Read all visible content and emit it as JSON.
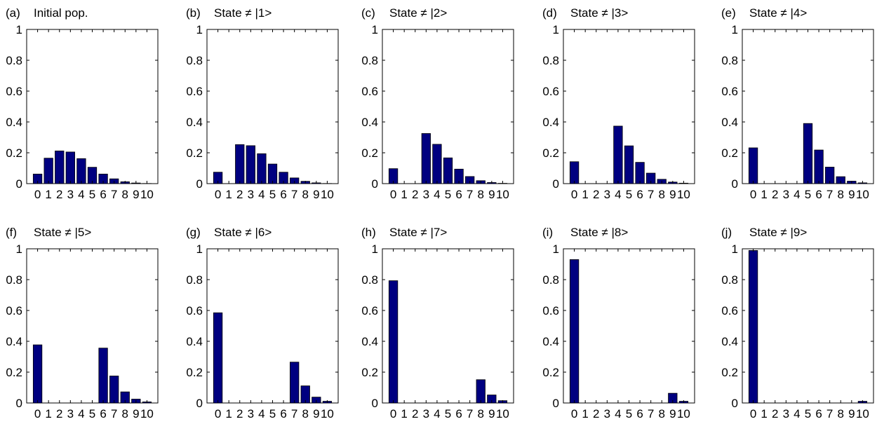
{
  "chart_data": [
    {
      "panel_label": "(a)",
      "title": "Initial pop.",
      "type": "bar",
      "categories": [
        "0",
        "1",
        "2",
        "3",
        "4",
        "5",
        "6",
        "7",
        "8",
        "9",
        "10"
      ],
      "values": [
        0.062,
        0.165,
        0.212,
        0.205,
        0.162,
        0.106,
        0.062,
        0.031,
        0.012,
        0.004,
        0.001
      ],
      "ylim": [
        0,
        1
      ],
      "yticks": [
        "0",
        "0.2",
        "0.4",
        "0.6",
        "0.8",
        "1"
      ],
      "xlabel": "",
      "ylabel": ""
    },
    {
      "panel_label": "(b)",
      "title": "State ≠ |1>",
      "type": "bar",
      "categories": [
        "0",
        "1",
        "2",
        "3",
        "4",
        "5",
        "6",
        "7",
        "8",
        "9",
        "10"
      ],
      "values": [
        0.074,
        0,
        0.253,
        0.246,
        0.194,
        0.127,
        0.074,
        0.037,
        0.015,
        0.005,
        0.001
      ],
      "ylim": [
        0,
        1
      ],
      "yticks": [
        "0",
        "0.2",
        "0.4",
        "0.6",
        "0.8",
        "1"
      ],
      "xlabel": "",
      "ylabel": ""
    },
    {
      "panel_label": "(c)",
      "title": "State ≠ |2>",
      "type": "bar",
      "categories": [
        "0",
        "1",
        "2",
        "3",
        "4",
        "5",
        "6",
        "7",
        "8",
        "9",
        "10"
      ],
      "values": [
        0.097,
        0,
        0,
        0.325,
        0.255,
        0.167,
        0.094,
        0.046,
        0.019,
        0.007,
        0.002
      ],
      "ylim": [
        0,
        1
      ],
      "yticks": [
        "0",
        "0.2",
        "0.4",
        "0.6",
        "0.8",
        "1"
      ],
      "xlabel": "",
      "ylabel": ""
    },
    {
      "panel_label": "(d)",
      "title": "State ≠ |3>",
      "type": "bar",
      "categories": [
        "0",
        "1",
        "2",
        "3",
        "4",
        "5",
        "6",
        "7",
        "8",
        "9",
        "10"
      ],
      "values": [
        0.142,
        0,
        0,
        0,
        0.373,
        0.245,
        0.138,
        0.068,
        0.028,
        0.01,
        0.003
      ],
      "ylim": [
        0,
        1
      ],
      "yticks": [
        "0",
        "0.2",
        "0.4",
        "0.6",
        "0.8",
        "1"
      ],
      "xlabel": "",
      "ylabel": ""
    },
    {
      "panel_label": "(e)",
      "title": "State ≠ |4>",
      "type": "bar",
      "categories": [
        "0",
        "1",
        "2",
        "3",
        "4",
        "5",
        "6",
        "7",
        "8",
        "9",
        "10"
      ],
      "values": [
        0.232,
        0,
        0,
        0,
        0,
        0.39,
        0.218,
        0.107,
        0.045,
        0.016,
        0.005
      ],
      "ylim": [
        0,
        1
      ],
      "yticks": [
        "0",
        "0.2",
        "0.4",
        "0.6",
        "0.8",
        "1"
      ],
      "xlabel": "",
      "ylabel": ""
    },
    {
      "panel_label": "(f)",
      "title": "State ≠ |5>",
      "type": "bar",
      "categories": [
        "0",
        "1",
        "2",
        "3",
        "4",
        "5",
        "6",
        "7",
        "8",
        "9",
        "10"
      ],
      "values": [
        0.377,
        0,
        0,
        0,
        0,
        0,
        0.356,
        0.175,
        0.072,
        0.025,
        0.007
      ],
      "ylim": [
        0,
        1
      ],
      "yticks": [
        "0",
        "0.2",
        "0.4",
        "0.6",
        "0.8",
        "1"
      ],
      "xlabel": "",
      "ylabel": ""
    },
    {
      "panel_label": "(g)",
      "title": "State ≠ |6>",
      "type": "bar",
      "categories": [
        "0",
        "1",
        "2",
        "3",
        "4",
        "5",
        "6",
        "7",
        "8",
        "9",
        "10"
      ],
      "values": [
        0.585,
        0,
        0,
        0,
        0,
        0,
        0,
        0.265,
        0.111,
        0.038,
        0.011
      ],
      "ylim": [
        0,
        1
      ],
      "yticks": [
        "0",
        "0.2",
        "0.4",
        "0.6",
        "0.8",
        "1"
      ],
      "xlabel": "",
      "ylabel": ""
    },
    {
      "panel_label": "(h)",
      "title": "State ≠ |7>",
      "type": "bar",
      "categories": [
        "0",
        "1",
        "2",
        "3",
        "4",
        "5",
        "6",
        "7",
        "8",
        "9",
        "10"
      ],
      "values": [
        0.793,
        0,
        0,
        0,
        0,
        0,
        0,
        0,
        0.151,
        0.052,
        0.015
      ],
      "ylim": [
        0,
        1
      ],
      "yticks": [
        "0",
        "0.2",
        "0.4",
        "0.6",
        "0.8",
        "1"
      ],
      "xlabel": "",
      "ylabel": ""
    },
    {
      "panel_label": "(i)",
      "title": "State ≠ |8>",
      "type": "bar",
      "categories": [
        "0",
        "1",
        "2",
        "3",
        "4",
        "5",
        "6",
        "7",
        "8",
        "9",
        "10"
      ],
      "values": [
        0.93,
        0,
        0,
        0,
        0,
        0,
        0,
        0,
        0,
        0.063,
        0.011
      ],
      "ylim": [
        0,
        1
      ],
      "yticks": [
        "0",
        "0.2",
        "0.4",
        "0.6",
        "0.8",
        "1"
      ],
      "xlabel": "",
      "ylabel": ""
    },
    {
      "panel_label": "(j)",
      "title": "State ≠ |9>",
      "type": "bar",
      "categories": [
        "0",
        "1",
        "2",
        "3",
        "4",
        "5",
        "6",
        "7",
        "8",
        "9",
        "10"
      ],
      "values": [
        0.989,
        0,
        0,
        0,
        0,
        0,
        0,
        0,
        0,
        0,
        0.011
      ],
      "ylim": [
        0,
        1
      ],
      "yticks": [
        "0",
        "0.2",
        "0.4",
        "0.6",
        "0.8",
        "1"
      ],
      "xlabel": "",
      "ylabel": ""
    }
  ],
  "colors": {
    "bar_fill": "#000080",
    "bar_edge": "#000000",
    "axes": "#000000"
  }
}
